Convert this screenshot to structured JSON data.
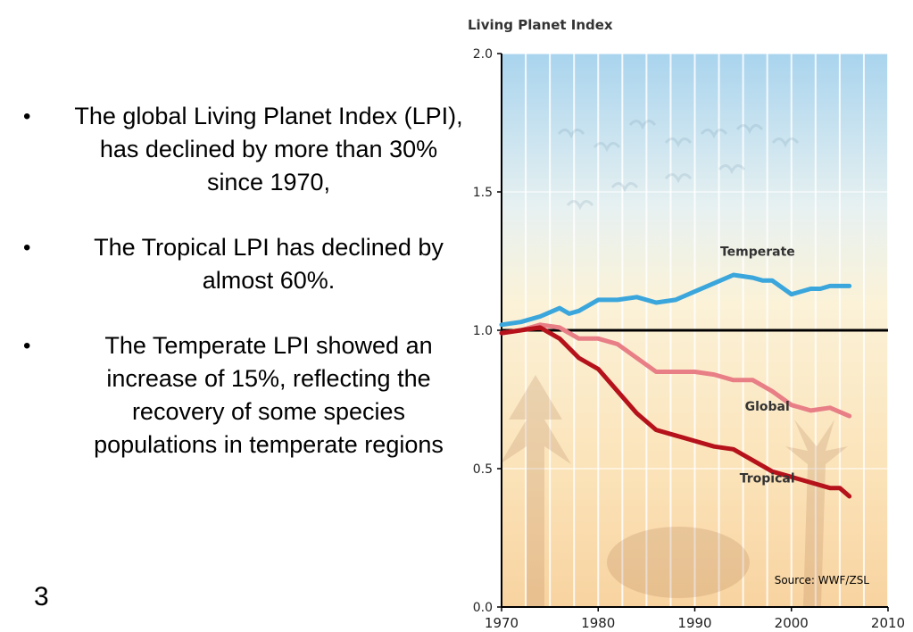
{
  "bullets": [
    "The global Living Planet Index (LPI), has declined by more than 30% since 1970,",
    "The Tropical LPI has declined by almost 60%.",
    "The Temperate LPI showed an increase of 15%, reflecting the recovery of some species populations in temperate regions"
  ],
  "slide_number": "3",
  "chart_data": {
    "type": "line",
    "title": "Living Planet Index",
    "xlabel": "",
    "ylabel": "",
    "xlim": [
      1970,
      2010
    ],
    "ylim": [
      0.0,
      2.0
    ],
    "x_ticks": [
      "1970",
      "1980",
      "1990",
      "2000",
      "2010"
    ],
    "y_ticks": [
      "0.0",
      "0.5",
      "1.0",
      "1.5",
      "2.0"
    ],
    "reference_line": 1.0,
    "grid": true,
    "source": "Source: WWF/ZSL",
    "colors": {
      "Temperate": "#3aa6dc",
      "Global": "#e87e86",
      "Tropical": "#b5121b",
      "reference": "#000000"
    },
    "series": [
      {
        "name": "Temperate",
        "x": [
          1970,
          1972,
          1974,
          1976,
          1977,
          1978,
          1980,
          1982,
          1984,
          1986,
          1988,
          1990,
          1992,
          1994,
          1996,
          1997,
          1998,
          2000,
          2002,
          2003,
          2004,
          2006
        ],
        "values": [
          1.02,
          1.03,
          1.05,
          1.08,
          1.06,
          1.07,
          1.11,
          1.11,
          1.12,
          1.1,
          1.11,
          1.14,
          1.17,
          1.2,
          1.19,
          1.18,
          1.18,
          1.13,
          1.15,
          1.15,
          1.16,
          1.16
        ]
      },
      {
        "name": "Global",
        "x": [
          1970,
          1972,
          1974,
          1976,
          1978,
          1980,
          1982,
          1984,
          1986,
          1988,
          1990,
          1992,
          1994,
          1996,
          1998,
          2000,
          2002,
          2004,
          2006
        ],
        "values": [
          0.99,
          1.0,
          1.02,
          1.01,
          0.97,
          0.97,
          0.95,
          0.9,
          0.85,
          0.85,
          0.85,
          0.84,
          0.82,
          0.82,
          0.78,
          0.73,
          0.71,
          0.72,
          0.69
        ]
      },
      {
        "name": "Tropical",
        "x": [
          1970,
          1972,
          1974,
          1976,
          1978,
          1980,
          1982,
          1984,
          1986,
          1988,
          1990,
          1992,
          1994,
          1996,
          1998,
          2000,
          2002,
          2004,
          2005,
          2006
        ],
        "values": [
          0.99,
          1.0,
          1.01,
          0.97,
          0.9,
          0.86,
          0.78,
          0.7,
          0.64,
          0.62,
          0.6,
          0.58,
          0.57,
          0.53,
          0.49,
          0.47,
          0.45,
          0.43,
          0.43,
          0.4
        ]
      }
    ],
    "series_labels": {
      "Temperate": {
        "x": 1996.5,
        "y": 1.27
      },
      "Global": {
        "x": 1997.5,
        "y": 0.71
      },
      "Tropical": {
        "x": 1997.5,
        "y": 0.45
      }
    }
  }
}
